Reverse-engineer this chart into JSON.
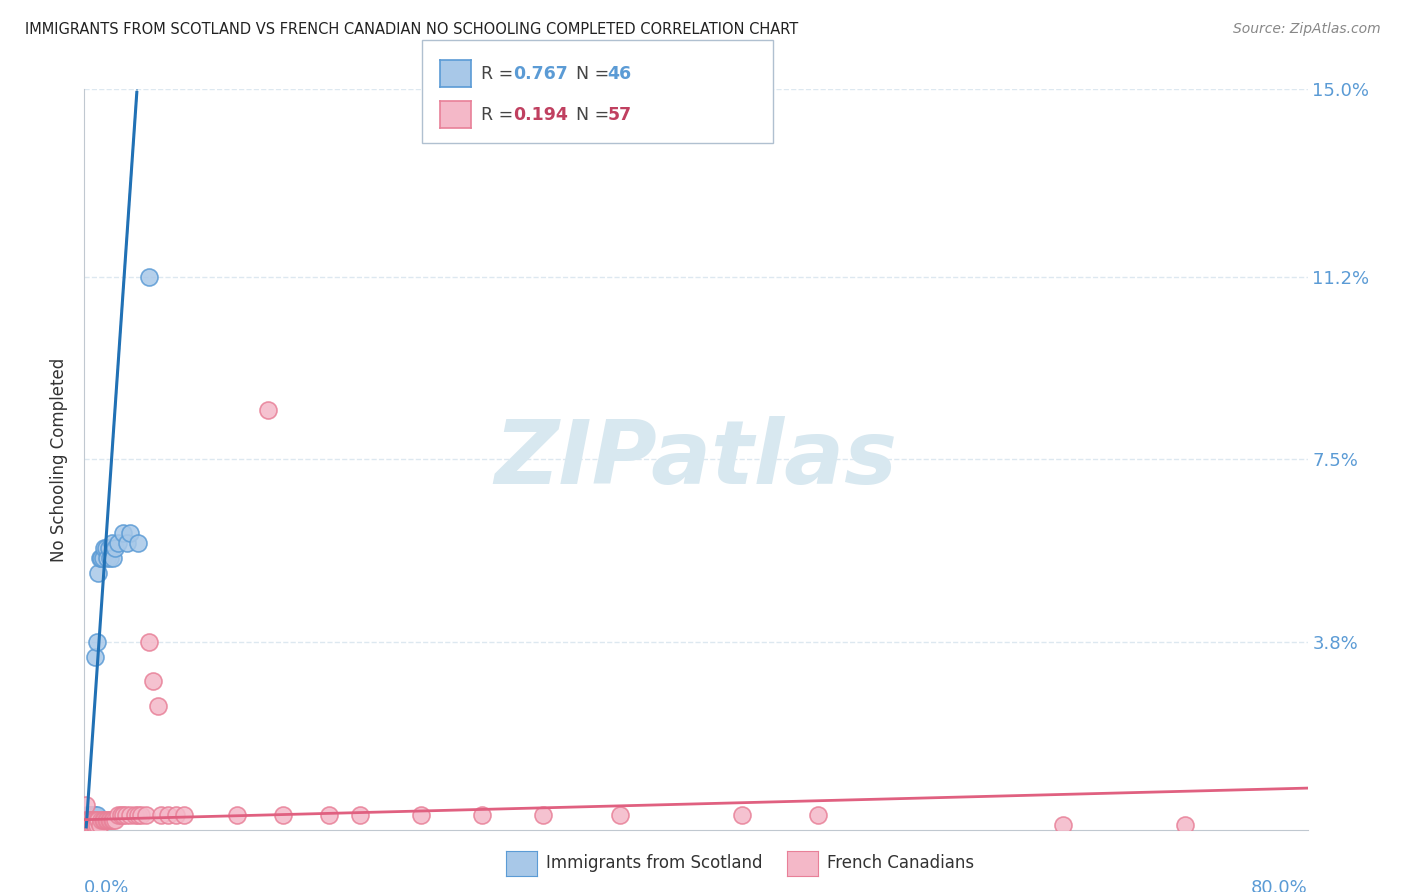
{
  "title": "IMMIGRANTS FROM SCOTLAND VS FRENCH CANADIAN NO SCHOOLING COMPLETED CORRELATION CHART",
  "source": "Source: ZipAtlas.com",
  "ylabel": "No Schooling Completed",
  "xlim": [
    0.0,
    0.8
  ],
  "ylim": [
    0.0,
    0.15
  ],
  "ytick_positions": [
    0.0,
    0.038,
    0.075,
    0.112,
    0.15
  ],
  "ytick_labels": [
    "",
    "3.8%",
    "7.5%",
    "11.2%",
    "15.0%"
  ],
  "xtick_labels_left": "0.0%",
  "xtick_labels_right": "80.0%",
  "legend_scotland_R": "0.767",
  "legend_scotland_N": "46",
  "legend_french_R": "0.194",
  "legend_french_N": "57",
  "scotland_x": [
    0.001,
    0.001,
    0.001,
    0.001,
    0.001,
    0.001,
    0.001,
    0.001,
    0.002,
    0.002,
    0.002,
    0.002,
    0.002,
    0.002,
    0.003,
    0.003,
    0.003,
    0.003,
    0.004,
    0.004,
    0.004,
    0.005,
    0.005,
    0.006,
    0.007,
    0.007,
    0.008,
    0.008,
    0.009,
    0.01,
    0.011,
    0.012,
    0.013,
    0.014,
    0.015,
    0.016,
    0.017,
    0.018,
    0.019,
    0.02,
    0.022,
    0.025,
    0.028,
    0.03,
    0.035,
    0.042
  ],
  "scotland_y": [
    0.0005,
    0.001,
    0.001,
    0.001,
    0.0015,
    0.0015,
    0.002,
    0.002,
    0.001,
    0.001,
    0.002,
    0.002,
    0.002,
    0.003,
    0.001,
    0.002,
    0.002,
    0.003,
    0.002,
    0.003,
    0.003,
    0.002,
    0.003,
    0.003,
    0.003,
    0.035,
    0.003,
    0.038,
    0.052,
    0.055,
    0.055,
    0.055,
    0.057,
    0.057,
    0.055,
    0.057,
    0.055,
    0.058,
    0.055,
    0.057,
    0.058,
    0.06,
    0.058,
    0.06,
    0.058,
    0.112
  ],
  "french_x": [
    0.001,
    0.001,
    0.002,
    0.002,
    0.003,
    0.003,
    0.004,
    0.004,
    0.005,
    0.005,
    0.006,
    0.006,
    0.007,
    0.007,
    0.008,
    0.008,
    0.009,
    0.01,
    0.011,
    0.012,
    0.013,
    0.014,
    0.015,
    0.016,
    0.017,
    0.018,
    0.019,
    0.02,
    0.022,
    0.024,
    0.025,
    0.027,
    0.03,
    0.033,
    0.035,
    0.037,
    0.04,
    0.042,
    0.045,
    0.048,
    0.05,
    0.055,
    0.06,
    0.065,
    0.1,
    0.12,
    0.13,
    0.16,
    0.18,
    0.22,
    0.26,
    0.3,
    0.35,
    0.43,
    0.48,
    0.64,
    0.72
  ],
  "french_y": [
    0.005,
    0.002,
    0.002,
    0.001,
    0.002,
    0.001,
    0.001,
    0.002,
    0.001,
    0.002,
    0.002,
    0.001,
    0.002,
    0.001,
    0.002,
    0.001,
    0.002,
    0.001,
    0.002,
    0.002,
    0.002,
    0.002,
    0.002,
    0.002,
    0.002,
    0.002,
    0.002,
    0.002,
    0.003,
    0.003,
    0.003,
    0.003,
    0.003,
    0.003,
    0.003,
    0.003,
    0.003,
    0.038,
    0.03,
    0.025,
    0.003,
    0.003,
    0.003,
    0.003,
    0.003,
    0.085,
    0.003,
    0.003,
    0.003,
    0.003,
    0.003,
    0.003,
    0.003,
    0.003,
    0.003,
    0.001,
    0.001
  ],
  "color_scotland_fill": "#a8c8e8",
  "color_scotland_edge": "#5b9bd5",
  "color_scotland_line": "#2171b5",
  "color_french_fill": "#f4b8c8",
  "color_french_edge": "#e88098",
  "color_french_line": "#e06080",
  "watermark_text": "ZIPatlas",
  "watermark_color": "#d8e8f0",
  "background_color": "#ffffff",
  "grid_color": "#dde8f0",
  "legend_R_color_scotland": "#5b9bd5",
  "legend_N_color_scotland": "#5b9bd5",
  "legend_R_color_french": "#c04060",
  "legend_N_color_french": "#c04060"
}
